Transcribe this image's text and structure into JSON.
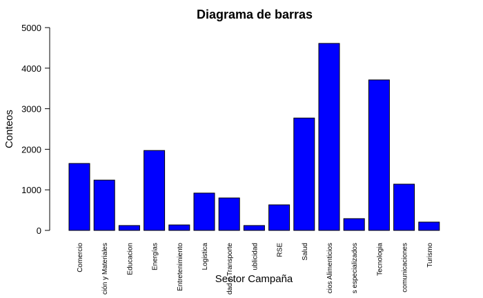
{
  "chart_data": {
    "type": "bar",
    "title": "Diagrama de barras",
    "xlabel": "Sector Campaña",
    "ylabel": "Conteos",
    "categories": [
      "Comercio",
      "ción y Materiales",
      "Educacion",
      "Energías",
      "Entretenimiento",
      "Logistica",
      "dad y Transporte",
      "ublicidad",
      "RSE",
      "Salud",
      "cios Alimenticios",
      "s especializados",
      "Tecnologia",
      "comunicaciones",
      "Turismo"
    ],
    "values": [
      1650,
      1240,
      120,
      1970,
      135,
      920,
      800,
      120,
      630,
      2770,
      4610,
      290,
      3710,
      1140,
      205
    ],
    "color": "#0000ff",
    "ylim": [
      0,
      5000
    ],
    "yticks": [
      0,
      1000,
      2000,
      3000,
      4000,
      5000
    ],
    "grid": false
  }
}
